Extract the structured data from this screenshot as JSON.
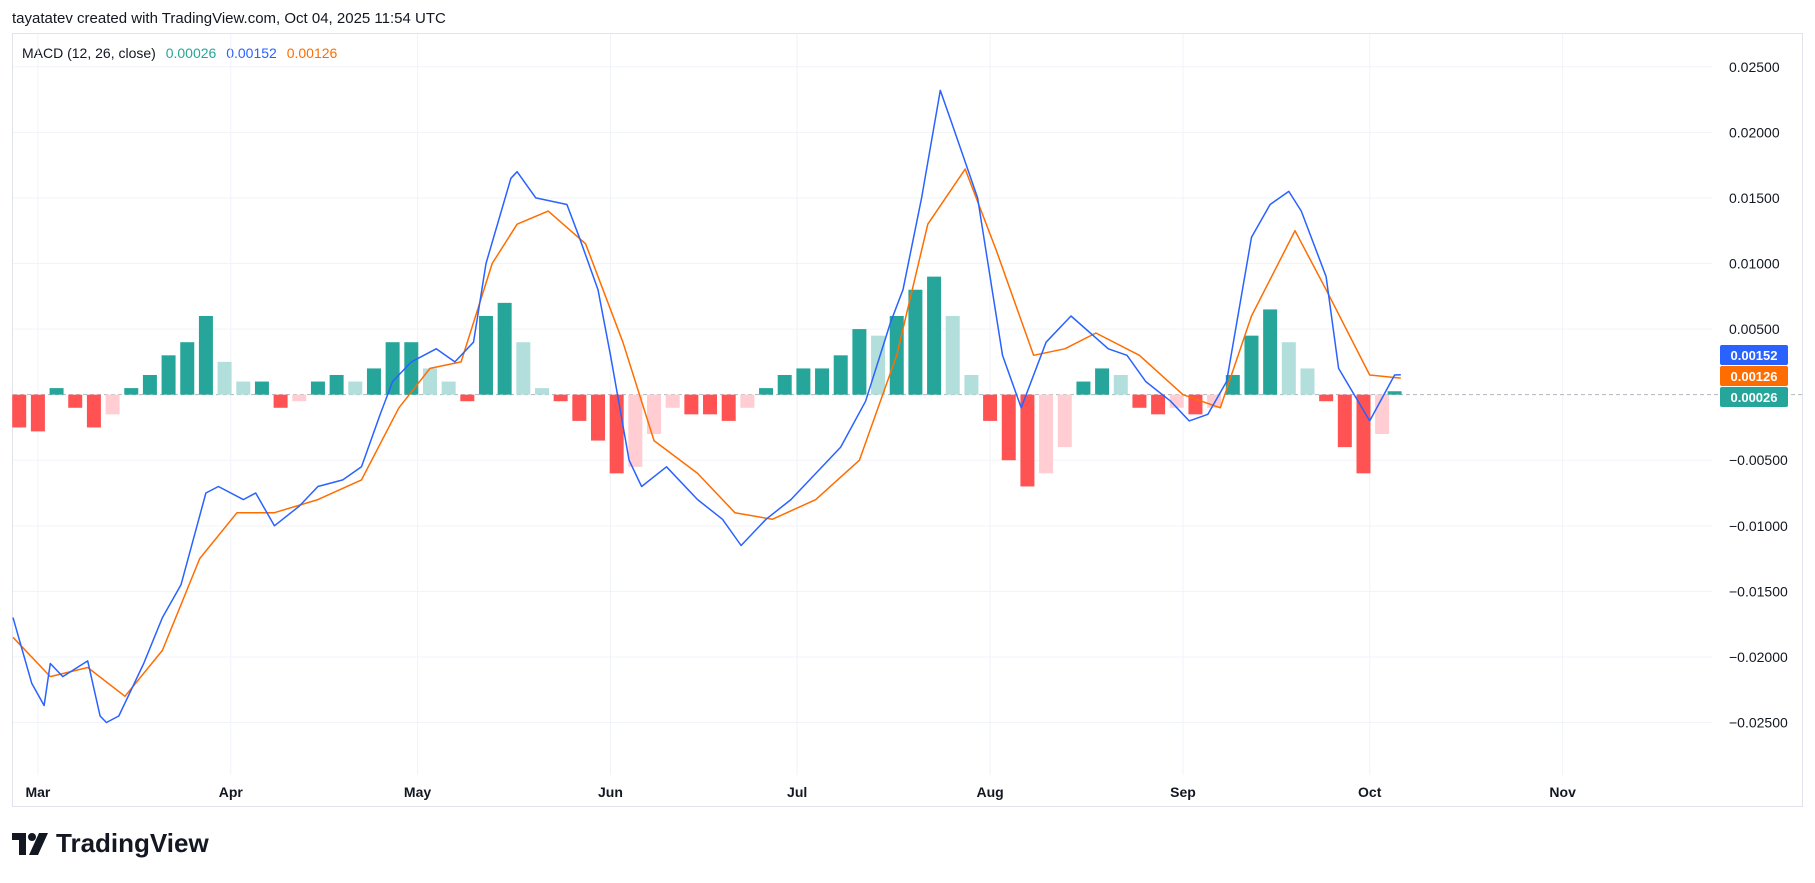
{
  "header": {
    "caption": "tayatatev created with TradingView.com, Oct 04, 2025 11:54 UTC"
  },
  "legend": {
    "label": "MACD (12, 26, close)",
    "hist_value": "0.00026",
    "macd_value": "0.00152",
    "signal_value": "0.00126"
  },
  "brand": {
    "name": "TradingView"
  },
  "colors": {
    "macd": "#2962ff",
    "signal": "#ff6d00",
    "hist_up_strong": "#26a69a",
    "hist_up_weak": "#b2dfdb",
    "hist_down_strong": "#ff5252",
    "hist_down_weak": "#ffcdd2",
    "axis_text": "#131722",
    "grid": "#f0f3fa"
  },
  "chart_data": {
    "type": "line",
    "title": "",
    "indicator": "MACD (12, 26, close)",
    "xlabel": "",
    "ylabel": "",
    "x_range": [
      "2025-02-25",
      "2025-11-25"
    ],
    "ylim": [
      -0.029,
      0.0275
    ],
    "x_tick_labels": [
      {
        "label": "Mar",
        "date": "2025-03-01"
      },
      {
        "label": "Apr",
        "date": "2025-04-01"
      },
      {
        "label": "May",
        "date": "2025-05-01"
      },
      {
        "label": "Jun",
        "date": "2025-06-01"
      },
      {
        "label": "Jul",
        "date": "2025-07-01"
      },
      {
        "label": "Aug",
        "date": "2025-08-01"
      },
      {
        "label": "Sep",
        "date": "2025-09-01"
      },
      {
        "label": "Oct",
        "date": "2025-10-01"
      },
      {
        "label": "Nov",
        "date": "2025-11-01"
      }
    ],
    "y_ticks": [
      0.025,
      0.02,
      0.015,
      0.01,
      0.005,
      -0.005,
      -0.01,
      -0.015,
      -0.02,
      -0.025
    ],
    "y_tick_labels": [
      "0.02500",
      "0.02000",
      "0.01500",
      "0.01000",
      "0.00500",
      "−0.00500",
      "−0.01000",
      "−0.01500",
      "−0.02000",
      "−0.02500"
    ],
    "last_value_labels": [
      {
        "series": "MACD",
        "text": "0.00152",
        "value": 0.00152
      },
      {
        "series": "Signal",
        "text": "0.00126",
        "value": 0.00126
      },
      {
        "series": "Histogram",
        "text": "0.00026",
        "value": 0.00026
      }
    ],
    "macd_line": [
      [
        "2025-02-25",
        -0.017
      ],
      [
        "2025-02-28",
        -0.022
      ],
      [
        "2025-03-02",
        -0.0237
      ],
      [
        "2025-03-03",
        -0.0205
      ],
      [
        "2025-03-05",
        -0.0215
      ],
      [
        "2025-03-09",
        -0.0203
      ],
      [
        "2025-03-11",
        -0.0245
      ],
      [
        "2025-03-12",
        -0.025
      ],
      [
        "2025-03-14",
        -0.0245
      ],
      [
        "2025-03-18",
        -0.0205
      ],
      [
        "2025-03-21",
        -0.017
      ],
      [
        "2025-03-24",
        -0.0145
      ],
      [
        "2025-03-28",
        -0.0075
      ],
      [
        "2025-03-30",
        -0.007
      ],
      [
        "2025-04-03",
        -0.008
      ],
      [
        "2025-04-05",
        -0.0075
      ],
      [
        "2025-04-08",
        -0.01
      ],
      [
        "2025-04-12",
        -0.0085
      ],
      [
        "2025-04-15",
        -0.007
      ],
      [
        "2025-04-19",
        -0.0065
      ],
      [
        "2025-04-22",
        -0.0055
      ],
      [
        "2025-04-25",
        -0.0015
      ],
      [
        "2025-04-27",
        0.001
      ],
      [
        "2025-04-30",
        0.0025
      ],
      [
        "2025-05-04",
        0.0035
      ],
      [
        "2025-05-07",
        0.0025
      ],
      [
        "2025-05-10",
        0.004
      ],
      [
        "2025-05-12",
        0.01
      ],
      [
        "2025-05-16",
        0.0165
      ],
      [
        "2025-05-17",
        0.017
      ],
      [
        "2025-05-20",
        0.015
      ],
      [
        "2025-05-25",
        0.0145
      ],
      [
        "2025-05-27",
        0.012
      ],
      [
        "2025-05-30",
        0.008
      ],
      [
        "2025-06-01",
        0.003
      ],
      [
        "2025-06-04",
        -0.005
      ],
      [
        "2025-06-06",
        -0.007
      ],
      [
        "2025-06-10",
        -0.0055
      ],
      [
        "2025-06-15",
        -0.008
      ],
      [
        "2025-06-19",
        -0.0095
      ],
      [
        "2025-06-22",
        -0.0115
      ],
      [
        "2025-06-26",
        -0.0095
      ],
      [
        "2025-06-30",
        -0.008
      ],
      [
        "2025-07-04",
        -0.006
      ],
      [
        "2025-07-08",
        -0.004
      ],
      [
        "2025-07-12",
        -0.0005
      ],
      [
        "2025-07-16",
        0.0055
      ],
      [
        "2025-07-18",
        0.008
      ],
      [
        "2025-07-21",
        0.015
      ],
      [
        "2025-07-24",
        0.0232
      ],
      [
        "2025-07-26",
        0.0205
      ],
      [
        "2025-07-30",
        0.015
      ],
      [
        "2025-08-03",
        0.003
      ],
      [
        "2025-08-06",
        -0.001
      ],
      [
        "2025-08-10",
        0.004
      ],
      [
        "2025-08-14",
        0.006
      ],
      [
        "2025-08-20",
        0.0035
      ],
      [
        "2025-08-23",
        0.003
      ],
      [
        "2025-08-26",
        0.001
      ],
      [
        "2025-08-30",
        -0.0005
      ],
      [
        "2025-09-02",
        -0.002
      ],
      [
        "2025-09-05",
        -0.0015
      ],
      [
        "2025-09-08",
        0.001
      ],
      [
        "2025-09-12",
        0.012
      ],
      [
        "2025-09-15",
        0.0145
      ],
      [
        "2025-09-18",
        0.0155
      ],
      [
        "2025-09-20",
        0.014
      ],
      [
        "2025-09-24",
        0.009
      ],
      [
        "2025-09-26",
        0.002
      ],
      [
        "2025-10-01",
        -0.002
      ],
      [
        "2025-10-05",
        0.0015
      ],
      [
        "2025-10-06",
        0.00152
      ]
    ],
    "signal_line": [
      [
        "2025-02-25",
        -0.0185
      ],
      [
        "2025-03-03",
        -0.0215
      ],
      [
        "2025-03-09",
        -0.0208
      ],
      [
        "2025-03-15",
        -0.023
      ],
      [
        "2025-03-21",
        -0.0195
      ],
      [
        "2025-03-27",
        -0.0125
      ],
      [
        "2025-04-02",
        -0.009
      ],
      [
        "2025-04-08",
        -0.009
      ],
      [
        "2025-04-15",
        -0.008
      ],
      [
        "2025-04-22",
        -0.0065
      ],
      [
        "2025-04-28",
        -0.001
      ],
      [
        "2025-05-03",
        0.002
      ],
      [
        "2025-05-08",
        0.0025
      ],
      [
        "2025-05-13",
        0.01
      ],
      [
        "2025-05-17",
        0.013
      ],
      [
        "2025-05-22",
        0.014
      ],
      [
        "2025-05-28",
        0.0115
      ],
      [
        "2025-06-03",
        0.004
      ],
      [
        "2025-06-08",
        -0.0035
      ],
      [
        "2025-06-15",
        -0.006
      ],
      [
        "2025-06-21",
        -0.009
      ],
      [
        "2025-06-27",
        -0.0095
      ],
      [
        "2025-07-04",
        -0.008
      ],
      [
        "2025-07-11",
        -0.005
      ],
      [
        "2025-07-17",
        0.003
      ],
      [
        "2025-07-22",
        0.013
      ],
      [
        "2025-07-28",
        0.0172
      ],
      [
        "2025-08-02",
        0.011
      ],
      [
        "2025-08-08",
        0.003
      ],
      [
        "2025-08-13",
        0.0035
      ],
      [
        "2025-08-18",
        0.0047
      ],
      [
        "2025-08-25",
        0.003
      ],
      [
        "2025-09-01",
        0.0
      ],
      [
        "2025-09-07",
        -0.001
      ],
      [
        "2025-09-12",
        0.006
      ],
      [
        "2025-09-19",
        0.0125
      ],
      [
        "2025-09-24",
        0.008
      ],
      [
        "2025-10-01",
        0.0015
      ],
      [
        "2025-10-06",
        0.00126
      ]
    ],
    "histogram": [
      [
        "2025-02-26",
        -0.0025
      ],
      [
        "2025-03-01",
        -0.0028
      ],
      [
        "2025-03-04",
        0.0005
      ],
      [
        "2025-03-07",
        -0.001
      ],
      [
        "2025-03-10",
        -0.0025
      ],
      [
        "2025-03-13",
        -0.0015
      ],
      [
        "2025-03-16",
        0.0005
      ],
      [
        "2025-03-19",
        0.0015
      ],
      [
        "2025-03-22",
        0.003
      ],
      [
        "2025-03-25",
        0.004
      ],
      [
        "2025-03-28",
        0.006
      ],
      [
        "2025-03-31",
        0.0025
      ],
      [
        "2025-04-03",
        0.001
      ],
      [
        "2025-04-06",
        0.001
      ],
      [
        "2025-04-09",
        -0.001
      ],
      [
        "2025-04-12",
        -0.0005
      ],
      [
        "2025-04-15",
        0.001
      ],
      [
        "2025-04-18",
        0.0015
      ],
      [
        "2025-04-21",
        0.001
      ],
      [
        "2025-04-24",
        0.002
      ],
      [
        "2025-04-27",
        0.004
      ],
      [
        "2025-04-30",
        0.004
      ],
      [
        "2025-05-03",
        0.002
      ],
      [
        "2025-05-06",
        0.001
      ],
      [
        "2025-05-09",
        -0.0005
      ],
      [
        "2025-05-12",
        0.006
      ],
      [
        "2025-05-15",
        0.007
      ],
      [
        "2025-05-18",
        0.004
      ],
      [
        "2025-05-21",
        0.0005
      ],
      [
        "2025-05-24",
        -0.0005
      ],
      [
        "2025-05-27",
        -0.002
      ],
      [
        "2025-05-30",
        -0.0035
      ],
      [
        "2025-06-02",
        -0.006
      ],
      [
        "2025-06-05",
        -0.0055
      ],
      [
        "2025-06-08",
        -0.003
      ],
      [
        "2025-06-11",
        -0.001
      ],
      [
        "2025-06-14",
        -0.0015
      ],
      [
        "2025-06-17",
        -0.0015
      ],
      [
        "2025-06-20",
        -0.002
      ],
      [
        "2025-06-23",
        -0.001
      ],
      [
        "2025-06-26",
        0.0005
      ],
      [
        "2025-06-29",
        0.0015
      ],
      [
        "2025-07-02",
        0.002
      ],
      [
        "2025-07-05",
        0.002
      ],
      [
        "2025-07-08",
        0.003
      ],
      [
        "2025-07-11",
        0.005
      ],
      [
        "2025-07-14",
        0.0045
      ],
      [
        "2025-07-17",
        0.006
      ],
      [
        "2025-07-20",
        0.008
      ],
      [
        "2025-07-23",
        0.009
      ],
      [
        "2025-07-26",
        0.006
      ],
      [
        "2025-07-29",
        0.0015
      ],
      [
        "2025-08-01",
        -0.002
      ],
      [
        "2025-08-04",
        -0.005
      ],
      [
        "2025-08-07",
        -0.007
      ],
      [
        "2025-08-10",
        -0.006
      ],
      [
        "2025-08-13",
        -0.004
      ],
      [
        "2025-08-16",
        0.001
      ],
      [
        "2025-08-19",
        0.002
      ],
      [
        "2025-08-22",
        0.0015
      ],
      [
        "2025-08-25",
        -0.001
      ],
      [
        "2025-08-28",
        -0.0015
      ],
      [
        "2025-08-31",
        -0.001
      ],
      [
        "2025-09-03",
        -0.0015
      ],
      [
        "2025-09-06",
        -0.001
      ],
      [
        "2025-09-09",
        0.0015
      ],
      [
        "2025-09-12",
        0.0045
      ],
      [
        "2025-09-15",
        0.0065
      ],
      [
        "2025-09-18",
        0.004
      ],
      [
        "2025-09-21",
        0.002
      ],
      [
        "2025-09-24",
        -0.0005
      ],
      [
        "2025-09-27",
        -0.004
      ],
      [
        "2025-09-30",
        -0.006
      ],
      [
        "2025-10-03",
        -0.003
      ],
      [
        "2025-10-05",
        0.00026
      ]
    ]
  }
}
